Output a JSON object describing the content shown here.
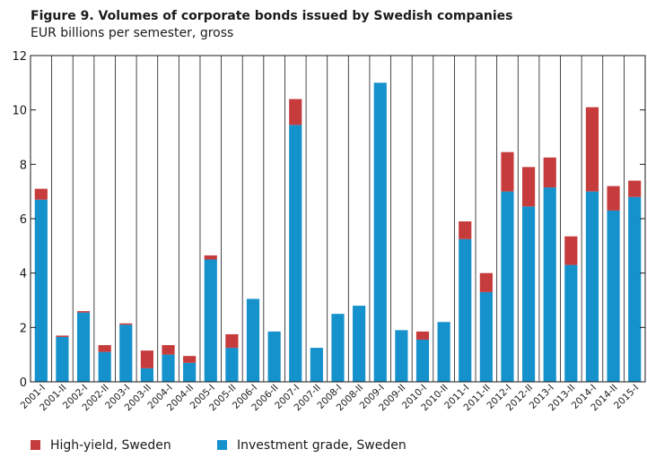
{
  "title": "Figure 9. Volumes of corporate bonds issued by Swedish companies",
  "subtitle": "EUR billions per semester, gross",
  "colors": {
    "high_yield": "#c63b3b",
    "investment_grade": "#1591cc"
  },
  "legend": [
    {
      "label": "High-yield, Sweden",
      "color_key": "high_yield"
    },
    {
      "label": "Investment grade, Sweden",
      "color_key": "investment_grade"
    }
  ],
  "chart_data": {
    "type": "bar",
    "stacked": true,
    "title": "Figure 9. Volumes of corporate bonds issued by Swedish companies",
    "subtitle": "EUR billions per semester, gross",
    "xlabel": "",
    "ylabel": "",
    "ylim": [
      0,
      12
    ],
    "yticks": [
      0,
      2,
      4,
      6,
      8,
      10,
      12
    ],
    "grid": false,
    "legend_position": "bottom",
    "categories": [
      "2001-I",
      "2001-II",
      "2002-I",
      "2002-II",
      "2003-I",
      "2003-II",
      "2004-I",
      "2004-II",
      "2005-I",
      "2005-II",
      "2006-I",
      "2006-II",
      "2007-I",
      "2007-II",
      "2008-I",
      "2008-II",
      "2009-I",
      "2009-II",
      "2010-I",
      "2010-II",
      "2011-I",
      "2011-II",
      "2012-I",
      "2012-II",
      "2013-I",
      "2013-II",
      "2014-I",
      "2014-II",
      "2015-I"
    ],
    "series": [
      {
        "name": "Investment grade, Sweden",
        "color_key": "investment_grade",
        "values": [
          6.7,
          1.65,
          2.55,
          1.1,
          2.1,
          0.5,
          1.0,
          0.7,
          4.5,
          1.25,
          3.05,
          1.85,
          9.45,
          1.25,
          2.5,
          2.8,
          11.0,
          1.9,
          1.55,
          2.2,
          5.25,
          3.3,
          7.0,
          6.45,
          7.15,
          4.3,
          7.0,
          6.3,
          6.8
        ]
      },
      {
        "name": "High-yield, Sweden",
        "color_key": "high_yield",
        "values": [
          0.4,
          0.05,
          0.05,
          0.25,
          0.05,
          0.65,
          0.35,
          0.25,
          0.15,
          0.5,
          0.0,
          0.0,
          0.95,
          0.0,
          0.0,
          0.0,
          0.0,
          0.0,
          0.3,
          0.0,
          0.65,
          0.7,
          1.45,
          1.45,
          1.1,
          1.05,
          3.1,
          0.9,
          0.6
        ]
      }
    ]
  }
}
